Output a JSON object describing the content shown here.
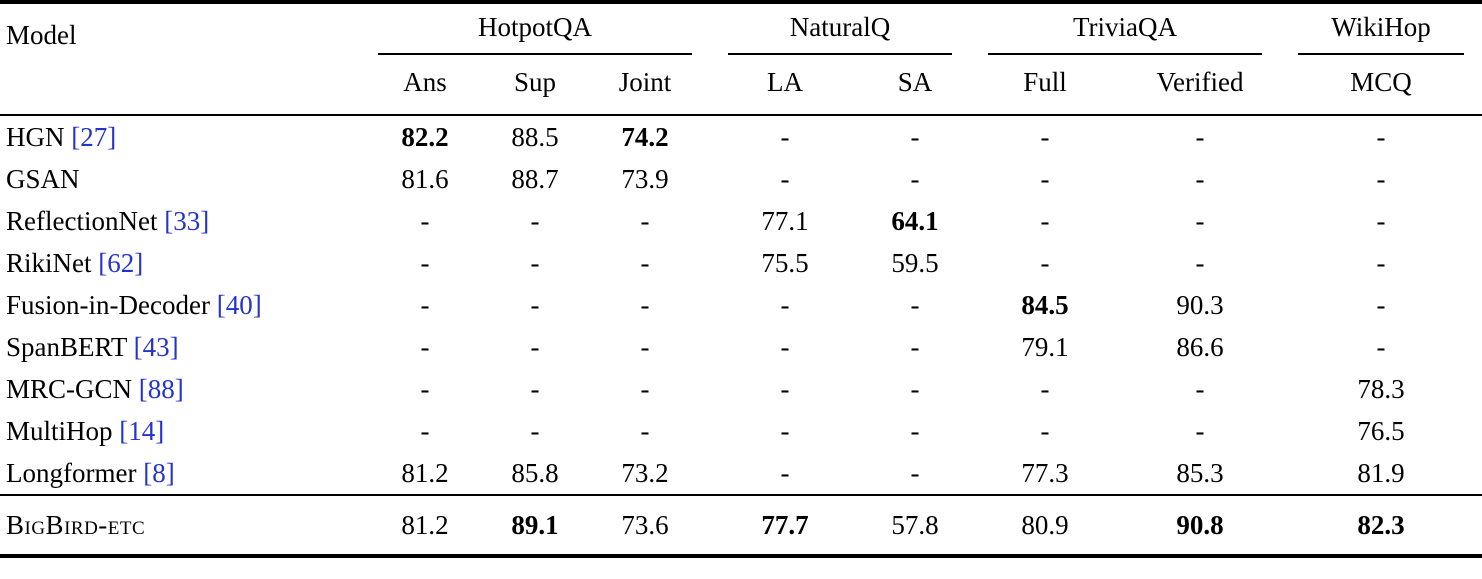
{
  "page": {
    "background": "#ffffff",
    "text_color": "#000000",
    "citation_color": "#2333cc"
  },
  "table": {
    "model_header": "Model",
    "groups": [
      {
        "label": "HotpotQA",
        "cols": [
          "Ans",
          "Sup",
          "Joint"
        ]
      },
      {
        "label": "NaturalQ",
        "cols": [
          "LA",
          "SA"
        ]
      },
      {
        "label": "TriviaQA",
        "cols": [
          "Full",
          "Verified"
        ]
      },
      {
        "label": "WikiHop",
        "cols": [
          "MCQ"
        ]
      }
    ],
    "rows": [
      {
        "model": "HGN",
        "citation": "[27]",
        "values": [
          "82.2",
          "88.5",
          "74.2",
          "-",
          "-",
          "-",
          "-",
          "-"
        ],
        "bold_cols": [
          0,
          2
        ]
      },
      {
        "model": "GSAN",
        "citation": "",
        "values": [
          "81.6",
          "88.7",
          "73.9",
          "-",
          "-",
          "-",
          "-",
          "-"
        ],
        "bold_cols": []
      },
      {
        "model": "ReflectionNet",
        "citation": "[33]",
        "values": [
          "-",
          "-",
          "-",
          "77.1",
          "64.1",
          "-",
          "-",
          "-"
        ],
        "bold_cols": [
          4
        ]
      },
      {
        "model": "RikiNet",
        "citation": "[62]",
        "values": [
          "-",
          "-",
          "-",
          "75.5",
          "59.5",
          "-",
          "-",
          "-"
        ],
        "bold_cols": []
      },
      {
        "model": "Fusion-in-Decoder",
        "citation": "[40]",
        "values": [
          "-",
          "-",
          "-",
          "-",
          "-",
          "84.5",
          "90.3",
          "-"
        ],
        "bold_cols": [
          5
        ]
      },
      {
        "model": "SpanBERT",
        "citation": "[43]",
        "values": [
          "-",
          "-",
          "-",
          "-",
          "-",
          "79.1",
          "86.6",
          "-"
        ],
        "bold_cols": []
      },
      {
        "model": "MRC-GCN",
        "citation": "[88]",
        "values": [
          "-",
          "-",
          "-",
          "-",
          "-",
          "-",
          "-",
          "78.3"
        ],
        "bold_cols": []
      },
      {
        "model": "MultiHop",
        "citation": "[14]",
        "values": [
          "-",
          "-",
          "-",
          "-",
          "-",
          "-",
          "-",
          "76.5"
        ],
        "bold_cols": []
      },
      {
        "model": "Longformer",
        "citation": "[8]",
        "values": [
          "81.2",
          "85.8",
          "73.2",
          "-",
          "-",
          "77.3",
          "85.3",
          "81.9"
        ],
        "bold_cols": []
      }
    ],
    "final_row": {
      "model": "BigBird-etc",
      "citation": "",
      "smallcaps": true,
      "values": [
        "81.2",
        "89.1",
        "73.6",
        "77.7",
        "57.8",
        "80.9",
        "90.8",
        "82.3"
      ],
      "bold_cols": [
        1,
        3,
        6,
        7
      ]
    }
  }
}
